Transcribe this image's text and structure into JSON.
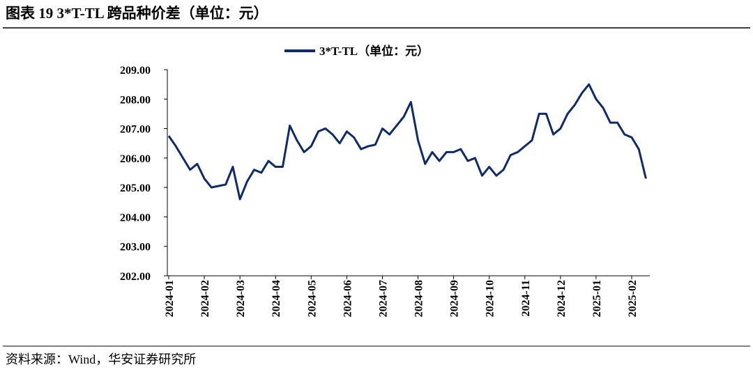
{
  "chart_data": {
    "type": "line",
    "title": "图表 19 3*T-TL 跨品种价差（单位：元）",
    "source": "资料来源：Wind，华安证券研究所",
    "categories": [
      "2024-01",
      null,
      null,
      null,
      null,
      "2024-02",
      null,
      null,
      null,
      null,
      "2024-03",
      null,
      null,
      null,
      null,
      "2024-04",
      null,
      null,
      null,
      null,
      "2024-05",
      null,
      null,
      null,
      null,
      "2024-06",
      null,
      null,
      null,
      null,
      "2024-07",
      null,
      null,
      null,
      null,
      "2024-08",
      null,
      null,
      null,
      null,
      "2024-09",
      null,
      null,
      null,
      null,
      "2024-10",
      null,
      null,
      null,
      null,
      "2024-11",
      null,
      null,
      null,
      null,
      "2024-12",
      null,
      null,
      null,
      null,
      "2025-01",
      null,
      null,
      null,
      null,
      "2025-02",
      null,
      null
    ],
    "series": [
      {
        "name": "3*T-TL（单位：元）",
        "color": "#0d2a6b",
        "values": [
          206.75,
          206.4,
          206.0,
          205.6,
          205.8,
          205.3,
          205.0,
          205.05,
          205.1,
          205.7,
          204.6,
          205.2,
          205.6,
          205.5,
          205.9,
          205.7,
          205.7,
          207.1,
          206.6,
          206.2,
          206.4,
          206.9,
          207.0,
          206.8,
          206.5,
          206.9,
          206.7,
          206.3,
          206.4,
          206.45,
          207.0,
          206.8,
          207.1,
          207.4,
          207.9,
          206.6,
          205.8,
          206.2,
          205.9,
          206.2,
          206.2,
          206.3,
          205.9,
          206.0,
          205.4,
          205.7,
          205.4,
          205.6,
          206.1,
          206.2,
          206.4,
          206.6,
          207.5,
          207.5,
          206.8,
          207.0,
          207.5,
          207.8,
          208.2,
          208.5,
          208.0,
          207.7,
          207.2,
          207.2,
          206.8,
          206.7,
          206.3,
          205.3
        ]
      }
    ],
    "ylim": [
      202,
      209
    ],
    "yticks": [
      {
        "value": 202,
        "label": "202.00"
      },
      {
        "value": 203,
        "label": "203.00"
      },
      {
        "value": 204,
        "label": "204.00"
      },
      {
        "value": 205,
        "label": "205.00"
      },
      {
        "value": 206,
        "label": "206.00"
      },
      {
        "value": 207,
        "label": "207.00"
      },
      {
        "value": 208,
        "label": "208.00"
      },
      {
        "value": 209,
        "label": "209.00"
      }
    ],
    "legend": "top"
  }
}
